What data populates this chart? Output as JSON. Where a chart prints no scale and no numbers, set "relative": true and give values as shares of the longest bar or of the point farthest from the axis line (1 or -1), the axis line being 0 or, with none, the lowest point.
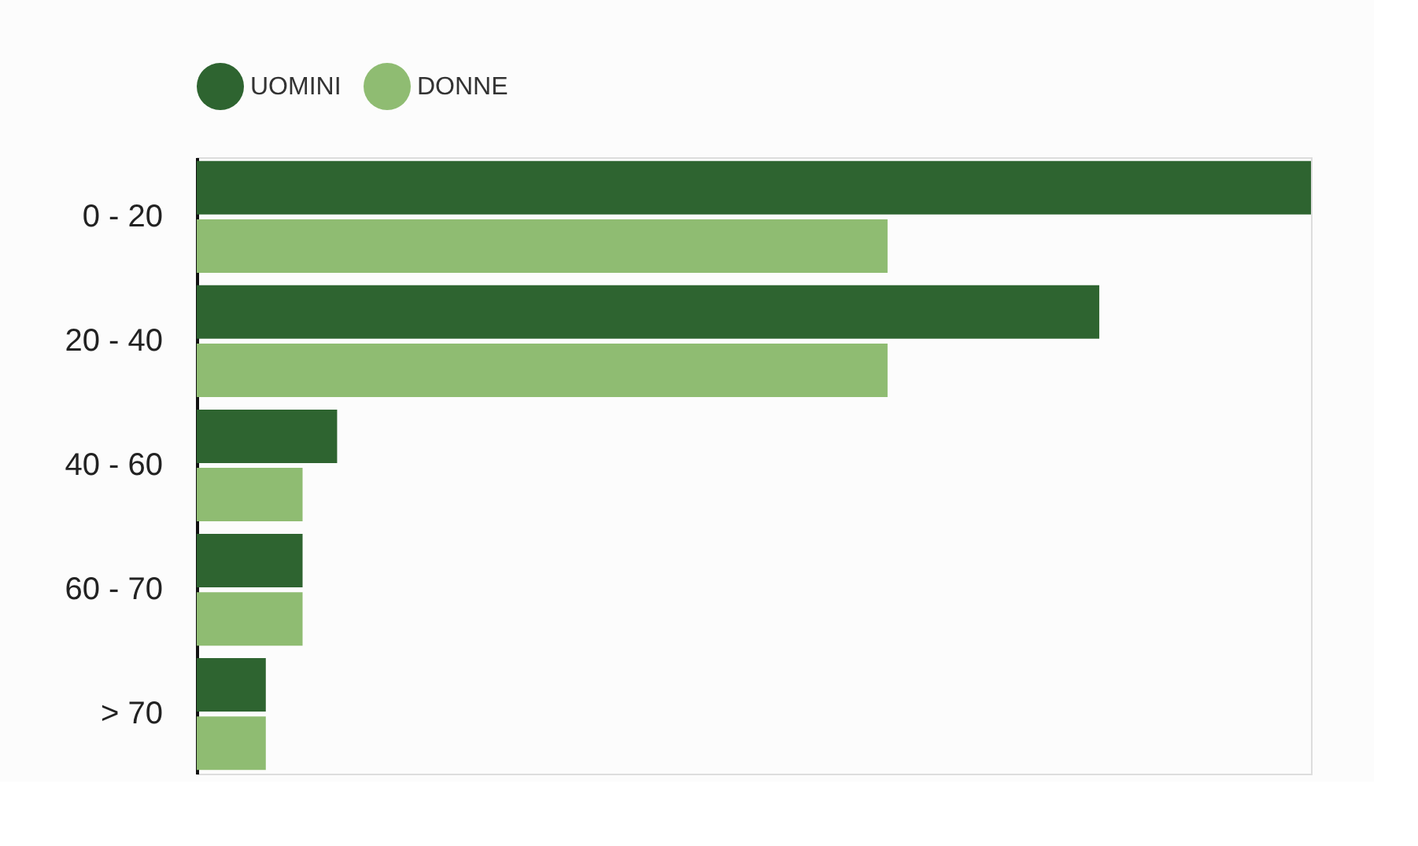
{
  "chart_data": {
    "type": "bar",
    "orientation": "horizontal",
    "relative": true,
    "categories": [
      "0 - 20",
      "20 - 40",
      "40 - 60",
      "60 - 70",
      "> 70"
    ],
    "series": [
      {
        "name": "UOMINI",
        "color": "#2e6430",
        "values": [
          1,
          0.81,
          0.126,
          0.095,
          0.062
        ]
      },
      {
        "name": "DONNE",
        "color": "#8fbc72",
        "values": [
          0.62,
          0.62,
          0.095,
          0.095,
          0.062
        ]
      }
    ],
    "legend": "top left"
  }
}
